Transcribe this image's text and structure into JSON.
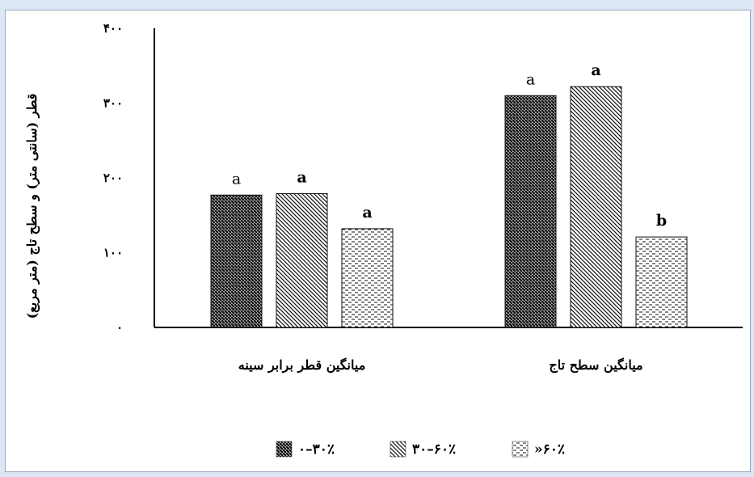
{
  "chart_data": {
    "type": "bar",
    "categories": [
      "میانگین قطر برابر سینه",
      "میانگین سطح تاج"
    ],
    "series": [
      {
        "name": "۰–۳۰٪",
        "values": [
          177,
          310
        ],
        "letters": [
          "a",
          "a"
        ],
        "pattern": "dense-crosshatch"
      },
      {
        "name": "۳۰–۶۰٪",
        "values": [
          179,
          322
        ],
        "letters": [
          "a",
          "a"
        ],
        "pattern": "diagonal-lines"
      },
      {
        "name": "»۶۰٪",
        "values": [
          132,
          121
        ],
        "letters": [
          "a",
          "b"
        ],
        "pattern": "dashed-lines"
      }
    ],
    "ylim": [
      0,
      400
    ],
    "yticks": [
      0,
      100,
      200,
      300,
      400
    ],
    "ytick_labels": [
      "۰",
      "۱۰۰",
      "۲۰۰",
      "۳۰۰",
      "۴۰۰"
    ],
    "ylabel": "قطر (سانتی متر)  و سطح تاج (متر مربع)",
    "xlabel": "",
    "grid": false,
    "legend_position": "bottom"
  },
  "colors": {
    "bar_pattern": "#111111",
    "axis": "#000000",
    "frame_border": "#9aa7bd"
  }
}
